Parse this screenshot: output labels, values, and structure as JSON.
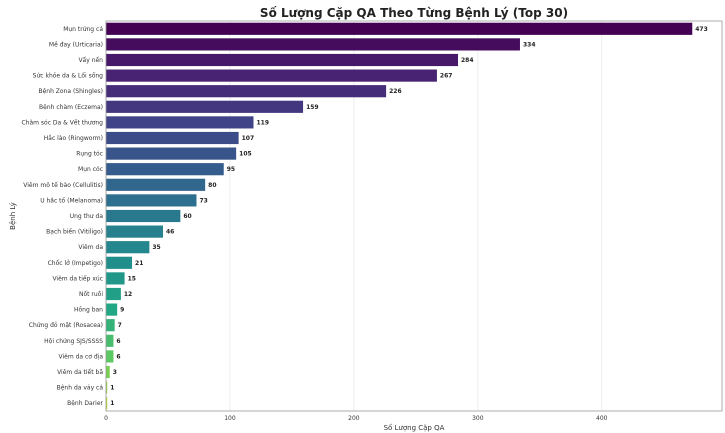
{
  "chart_data": {
    "type": "bar",
    "orientation": "horizontal",
    "title": "Số Lượng Cặp QA Theo Từng Bệnh Lý (Top 30)",
    "xlabel": "Số Lượng Cặp QA",
    "ylabel": "Bệnh Lý",
    "xlim": [
      0,
      497
    ],
    "xticks": [
      0,
      100,
      200,
      300,
      400
    ],
    "grid": true,
    "colormap": "viridis",
    "categories": [
      "Mụn trứng cá",
      "Mề đay (Urticaria)",
      "Vẩy nến",
      "Sức khỏe da & Lối sống",
      "Bệnh Zona (Shingles)",
      "Bệnh chàm (Eczema)",
      "Chăm sóc Da & Vết thương",
      "Hắc lào (Ringworm)",
      "Rụng tóc",
      "Mụn cóc",
      "Viêm mô tế bào (Cellulitis)",
      "U hắc tố (Melanoma)",
      "Ung thư da",
      "Bạch biến (Vitiligo)",
      "Viêm da",
      "Chốc lở (Impetigo)",
      "Viêm da tiếp xúc",
      "Nốt ruồi",
      "Hồng ban",
      "Chứng đỏ mặt (Rosacea)",
      "Hội chứng SJS/SSSS",
      "Viêm da cơ địa",
      "Viêm da tiết bã",
      "Bệnh da vảy cá",
      "Bệnh Darier"
    ],
    "values": [
      473,
      334,
      284,
      267,
      226,
      159,
      119,
      107,
      105,
      95,
      80,
      73,
      60,
      46,
      35,
      21,
      15,
      12,
      9,
      7,
      6,
      6,
      3,
      1,
      1
    ]
  }
}
